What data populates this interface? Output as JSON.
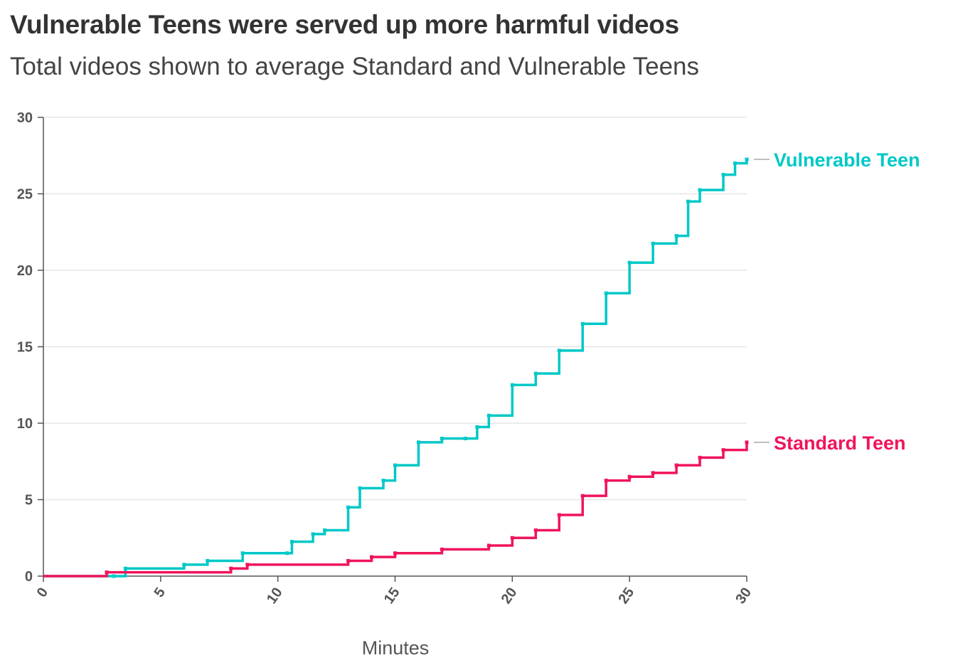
{
  "header": {
    "title": "Vulnerable Teens were served up more harmful videos",
    "subtitle": "Total videos shown to average Standard and Vulnerable Teens"
  },
  "chart_data": {
    "type": "line",
    "title": "Vulnerable Teens were served up more harmful videos",
    "subtitle": "Total videos shown to average Standard and Vulnerable Teens",
    "xlabel": "Minutes",
    "ylabel": "",
    "xlim": [
      0,
      30
    ],
    "ylim": [
      0,
      30
    ],
    "xticks": [
      0,
      5,
      10,
      15,
      20,
      25,
      30
    ],
    "yticks": [
      0,
      5,
      10,
      15,
      20,
      25,
      30
    ],
    "grid": "horizontal",
    "step": true,
    "legend": "direct labels at right end of lines",
    "series": [
      {
        "name": "Vulnerable Teen",
        "color": "#00c8c8",
        "x": [
          0,
          3,
          3.5,
          6,
          7,
          8.5,
          10.4,
          10.6,
          11.5,
          12,
          13,
          13.5,
          14.5,
          15,
          16,
          17,
          18,
          18.5,
          19,
          20,
          21,
          22,
          23,
          24,
          25,
          26,
          27,
          27.5,
          28,
          29,
          29.5,
          30
        ],
        "y": [
          0,
          0,
          0.5,
          0.75,
          1,
          1.5,
          1.5,
          2.25,
          2.75,
          3,
          4.5,
          5.75,
          6.25,
          7.25,
          8.75,
          9,
          9,
          9.75,
          10.5,
          12.5,
          13.25,
          14.75,
          16.5,
          18.5,
          20.5,
          21.75,
          22.25,
          24.5,
          25.25,
          26.25,
          27,
          27.25
        ]
      },
      {
        "name": "Standard Teen",
        "color": "#f0145a",
        "x": [
          0,
          2.7,
          8,
          8.7,
          13,
          14,
          15,
          17,
          19,
          20,
          21,
          22,
          23,
          24,
          25,
          26,
          27,
          28,
          29,
          30
        ],
        "y": [
          0,
          0.25,
          0.5,
          0.75,
          1,
          1.25,
          1.5,
          1.75,
          2,
          2.5,
          3,
          4,
          5.25,
          6.25,
          6.5,
          6.75,
          7.25,
          7.75,
          8.25,
          8.75
        ]
      }
    ]
  }
}
